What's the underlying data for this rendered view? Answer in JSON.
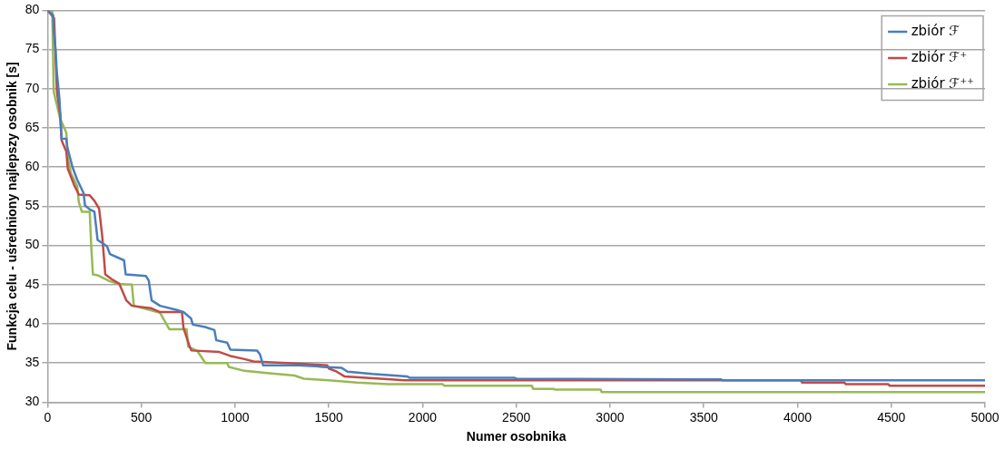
{
  "chart_data": {
    "type": "line",
    "xlabel": "Numer osobnika",
    "ylabel": "Funkcja celu - uśredniony najlepszy osobnik [s]",
    "xlim": [
      0,
      5000
    ],
    "xticks": [
      0,
      500,
      1000,
      1500,
      2000,
      2500,
      3000,
      3500,
      4000,
      4500,
      5000
    ],
    "ylim": [
      30,
      80
    ],
    "yticks": [
      30,
      35,
      40,
      45,
      50,
      55,
      60,
      65,
      70,
      75,
      80
    ],
    "grid": "y",
    "legend": "top right",
    "marker": "none",
    "line_style": "solid",
    "series": [
      {
        "name": "zbiór ℱ",
        "color": "#4a7ebb",
        "x": [
          0,
          30,
          33,
          42,
          50,
          63,
          75,
          100,
          105,
          133,
          158,
          192,
          200,
          225,
          250,
          267,
          317,
          333,
          408,
          417,
          525,
          540,
          555,
          600,
          700,
          725,
          765,
          775,
          840,
          890,
          900,
          958,
          975,
          1117,
          1133,
          1150,
          1333,
          1433,
          1467,
          1567,
          1600,
          1733,
          1917,
          1933,
          2492,
          2500,
          3592,
          3600,
          5000
        ],
        "values": [
          80,
          79.4,
          77.3,
          75.2,
          72,
          68.8,
          63.6,
          63.6,
          62.6,
          60,
          58.4,
          56.7,
          55.1,
          54.6,
          54.3,
          50.7,
          49.9,
          48.9,
          48.1,
          46.3,
          46.1,
          45.5,
          43,
          42.3,
          41.7,
          41.5,
          40.7,
          39.9,
          39.6,
          39.2,
          37.9,
          37.6,
          36.7,
          36.6,
          36.1,
          34.7,
          34.7,
          34.6,
          34.5,
          34.4,
          33.9,
          33.6,
          33.3,
          33.1,
          33.1,
          33,
          32.9,
          32.8,
          32.8
        ]
      },
      {
        "name": "zbiór ℱ⁺",
        "color": "#be4b48",
        "x": [
          0,
          35,
          50,
          67,
          75,
          100,
          108,
          142,
          167,
          225,
          250,
          275,
          292,
          308,
          342,
          383,
          420,
          450,
          550,
          600,
          717,
          725,
          758,
          767,
          917,
          975,
          1050,
          1100,
          1350,
          1492,
          1500,
          1542,
          1583,
          1833,
          1900,
          4017,
          4025,
          4250,
          4258,
          4483,
          4492,
          5000
        ],
        "values": [
          80,
          79,
          69.6,
          66.8,
          63.4,
          62,
          59.8,
          57.7,
          56.5,
          56.4,
          55.7,
          54.7,
          51.1,
          46.3,
          45.7,
          45.1,
          43,
          42.3,
          42,
          41.5,
          41.5,
          39.5,
          37.1,
          36.6,
          36.4,
          35.9,
          35.5,
          35.2,
          34.9,
          34.7,
          34.3,
          33.9,
          33.3,
          32.9,
          32.8,
          32.8,
          32.5,
          32.5,
          32.3,
          32.3,
          32.1,
          32.1
        ]
      },
      {
        "name": "zbiór ℱ⁺⁺",
        "color": "#98b954",
        "x": [
          0,
          25,
          33,
          67,
          100,
          108,
          125,
          158,
          167,
          183,
          225,
          233,
          242,
          267,
          325,
          375,
          450,
          460,
          600,
          650,
          742,
          750,
          800,
          842,
          958,
          967,
          1050,
          1183,
          1317,
          1367,
          1500,
          1650,
          1817,
          2108,
          2115,
          2583,
          2590,
          2700,
          2705,
          2950,
          2955,
          5000
        ],
        "values": [
          80,
          80,
          69.6,
          66.2,
          64.4,
          61.2,
          59.2,
          57.6,
          55.5,
          54.3,
          54.3,
          49.9,
          46.3,
          46.2,
          45.5,
          45.1,
          45,
          42.3,
          41.4,
          39.3,
          39.3,
          37.1,
          36.5,
          35,
          35,
          34.5,
          34,
          33.7,
          33.4,
          33,
          32.8,
          32.5,
          32.3,
          32.3,
          32.1,
          32.1,
          31.7,
          31.7,
          31.6,
          31.6,
          31.3,
          31.3
        ]
      }
    ]
  }
}
